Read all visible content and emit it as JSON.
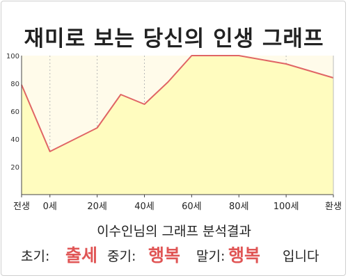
{
  "chart_data": {
    "type": "area",
    "title": "재미로 보는 당신의 인생 그래프",
    "x": [
      -12,
      0,
      20,
      30,
      40,
      50,
      60,
      80,
      100,
      120
    ],
    "values": [
      79,
      31,
      48,
      72,
      65,
      81,
      100,
      100,
      94,
      84
    ],
    "xticks": [
      {
        "x": -12,
        "label": "전생"
      },
      {
        "x": 0,
        "label": "0세"
      },
      {
        "x": 20,
        "label": "20세"
      },
      {
        "x": 40,
        "label": "40세"
      },
      {
        "x": 60,
        "label": "60세"
      },
      {
        "x": 80,
        "label": "80세"
      },
      {
        "x": 100,
        "label": "100세"
      },
      {
        "x": 120,
        "label": "환생"
      }
    ],
    "yticks": [
      20,
      40,
      60,
      80,
      100
    ],
    "xlim": [
      -12,
      120
    ],
    "ylim": [
      0,
      100
    ],
    "grid": "vertical dashed",
    "fill_color": "#fffcbf",
    "line_color": "#e06565",
    "background_color": "#fffbea"
  },
  "analysis": {
    "heading": "이수인님의 그래프 분석결과",
    "early_label": "초기:",
    "early_value": "출세",
    "middle_label": "중기:",
    "middle_value": "행복",
    "late_label": "말기:",
    "late_value": "행복",
    "suffix": "입니다"
  }
}
